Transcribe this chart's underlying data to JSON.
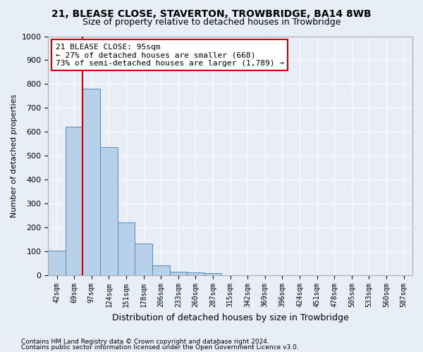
{
  "title1": "21, BLEASE CLOSE, STAVERTON, TROWBRIDGE, BA14 8WB",
  "title2": "Size of property relative to detached houses in Trowbridge",
  "xlabel": "Distribution of detached houses by size in Trowbridge",
  "ylabel": "Number of detached properties",
  "categories": [
    "42sqm",
    "69sqm",
    "97sqm",
    "124sqm",
    "151sqm",
    "178sqm",
    "206sqm",
    "233sqm",
    "260sqm",
    "287sqm",
    "315sqm",
    "342sqm",
    "369sqm",
    "396sqm",
    "424sqm",
    "451sqm",
    "478sqm",
    "505sqm",
    "533sqm",
    "560sqm",
    "587sqm"
  ],
  "values": [
    103,
    622,
    782,
    535,
    220,
    132,
    42,
    15,
    12,
    10,
    0,
    0,
    0,
    0,
    0,
    0,
    0,
    0,
    0,
    0,
    0
  ],
  "bar_color": "#b8d0e8",
  "bar_edge_color": "#5588bb",
  "vline_color": "#cc0000",
  "annotation_text": "21 BLEASE CLOSE: 95sqm\n← 27% of detached houses are smaller (668)\n73% of semi-detached houses are larger (1,789) →",
  "annotation_box_color": "#ffffff",
  "annotation_box_edge": "#cc0000",
  "ylim": [
    0,
    1000
  ],
  "yticks": [
    0,
    100,
    200,
    300,
    400,
    500,
    600,
    700,
    800,
    900,
    1000
  ],
  "footer1": "Contains HM Land Registry data © Crown copyright and database right 2024.",
  "footer2": "Contains public sector information licensed under the Open Government Licence v3.0.",
  "bg_color": "#e8eef7",
  "grid_color": "#ffffff",
  "title1_fontsize": 10,
  "title2_fontsize": 9
}
